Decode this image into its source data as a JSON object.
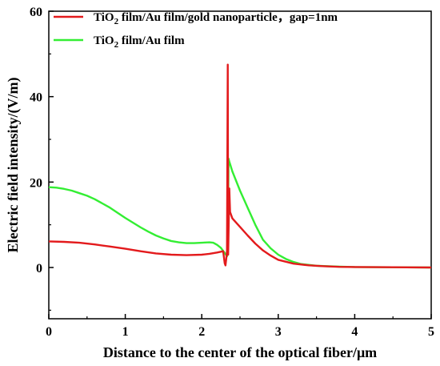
{
  "chart_data": {
    "type": "line",
    "xlabel": "Distance to the center of the optical fiber/μm",
    "ylabel": "Electric field intensity/(V/m)",
    "xlim": [
      0,
      5
    ],
    "ylim": [
      -12,
      60
    ],
    "x_ticks": [
      "0",
      "1",
      "2",
      "3",
      "4",
      "5"
    ],
    "y_ticks": [
      "0",
      "20",
      "40",
      "60"
    ],
    "grid": false,
    "legend_position": "top-left",
    "series": [
      {
        "name": "TiO2 film/Au film/gold nanoparticle，gap=1nm",
        "name_parts": {
          "a": "TiO",
          "sub": "2",
          "b": " film/Au film/gold nanoparticle，gap=1nm"
        },
        "color": "#e31a1c",
        "points": [
          [
            0,
            6.1
          ],
          [
            0.2,
            6.0
          ],
          [
            0.4,
            5.8
          ],
          [
            0.6,
            5.4
          ],
          [
            0.8,
            4.9
          ],
          [
            1.0,
            4.4
          ],
          [
            1.2,
            3.8
          ],
          [
            1.4,
            3.3
          ],
          [
            1.6,
            3.0
          ],
          [
            1.8,
            2.9
          ],
          [
            2.0,
            3.0
          ],
          [
            2.1,
            3.2
          ],
          [
            2.2,
            3.5
          ],
          [
            2.28,
            3.8
          ],
          [
            2.3,
            1.0
          ],
          [
            2.31,
            0.5
          ],
          [
            2.32,
            2.0
          ],
          [
            2.33,
            4.0
          ],
          [
            2.34,
            47.5
          ],
          [
            2.345,
            3.0
          ],
          [
            2.35,
            8.0
          ],
          [
            2.36,
            18.5
          ],
          [
            2.37,
            13.0
          ],
          [
            2.4,
            11.5
          ],
          [
            2.5,
            9.5
          ],
          [
            2.6,
            7.5
          ],
          [
            2.7,
            5.6
          ],
          [
            2.8,
            4.0
          ],
          [
            2.9,
            2.8
          ],
          [
            3.0,
            1.8
          ],
          [
            3.2,
            0.9
          ],
          [
            3.4,
            0.5
          ],
          [
            3.6,
            0.3
          ],
          [
            3.8,
            0.15
          ],
          [
            4.0,
            0.1
          ],
          [
            4.5,
            0.05
          ],
          [
            5.0,
            0.0
          ]
        ]
      },
      {
        "name": "TiO2 film/Au film",
        "name_parts": {
          "a": "TiO",
          "sub": "2",
          "b": " film/Au film"
        },
        "color": "#33ee33",
        "points": [
          [
            0,
            18.8
          ],
          [
            0.1,
            18.7
          ],
          [
            0.2,
            18.4
          ],
          [
            0.3,
            18.0
          ],
          [
            0.4,
            17.4
          ],
          [
            0.5,
            16.8
          ],
          [
            0.6,
            16.0
          ],
          [
            0.7,
            15.0
          ],
          [
            0.8,
            14.0
          ],
          [
            0.9,
            12.8
          ],
          [
            1.0,
            11.6
          ],
          [
            1.1,
            10.5
          ],
          [
            1.2,
            9.4
          ],
          [
            1.3,
            8.4
          ],
          [
            1.4,
            7.5
          ],
          [
            1.5,
            6.8
          ],
          [
            1.6,
            6.2
          ],
          [
            1.7,
            5.9
          ],
          [
            1.8,
            5.7
          ],
          [
            1.9,
            5.7
          ],
          [
            2.0,
            5.8
          ],
          [
            2.1,
            5.9
          ],
          [
            2.15,
            5.8
          ],
          [
            2.2,
            5.3
          ],
          [
            2.25,
            4.6
          ],
          [
            2.3,
            3.4
          ],
          [
            2.33,
            2.6
          ],
          [
            2.34,
            3.5
          ],
          [
            2.35,
            25.5
          ],
          [
            2.36,
            24.8
          ],
          [
            2.4,
            22.5
          ],
          [
            2.5,
            18.0
          ],
          [
            2.6,
            14.0
          ],
          [
            2.7,
            10.0
          ],
          [
            2.8,
            6.5
          ],
          [
            2.9,
            4.5
          ],
          [
            3.0,
            3.0
          ],
          [
            3.1,
            2.0
          ],
          [
            3.2,
            1.3
          ],
          [
            3.3,
            0.8
          ],
          [
            3.5,
            0.4
          ],
          [
            3.8,
            0.2
          ],
          [
            4.0,
            0.1
          ],
          [
            4.5,
            0.05
          ],
          [
            5.0,
            0.0
          ]
        ]
      }
    ]
  }
}
